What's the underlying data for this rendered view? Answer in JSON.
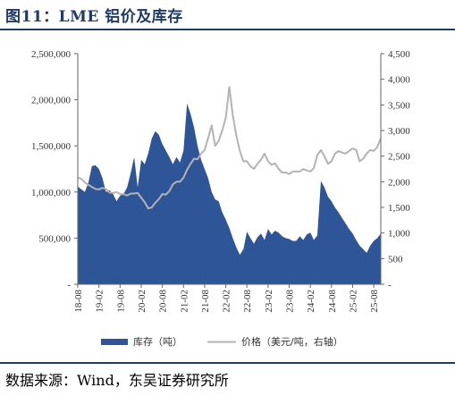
{
  "header": {
    "title": "图11：LME 铝价及库存"
  },
  "footer": {
    "source": "数据来源：Wind，东吴证券研究所"
  },
  "colors": {
    "brand": "#1f3a67",
    "inventory": "#2e5597",
    "price": "#b3b3b3"
  },
  "chart_data": {
    "type": "area",
    "title": "图11：LME 铝价及库存",
    "x_tick_labels": [
      "18-08",
      "19-02",
      "19-08",
      "20-02",
      "20-08",
      "21-02",
      "21-08",
      "22-02",
      "22-08",
      "23-02",
      "23-08",
      "24-02",
      "24-08",
      "25-02",
      "25-08"
    ],
    "left_axis": {
      "range": [
        0,
        2500000
      ],
      "tick_labels": [
        "-",
        "500,000",
        "1,000,000",
        "1,500,000",
        "2,000,000",
        "2,500,000"
      ]
    },
    "right_axis": {
      "range": [
        0,
        4500
      ],
      "tick_labels": [
        "-",
        "500",
        "1,000",
        "1,500",
        "2,000",
        "2,500",
        "3,000",
        "3,500",
        "4,000",
        "4,500"
      ]
    },
    "series": [
      {
        "name": "库存（吨）",
        "type": "area",
        "axis": "left",
        "color": "#2e5597",
        "points": [
          [
            "2018-08",
            1060000
          ],
          [
            "2018-09",
            1030000
          ],
          [
            "2018-10",
            1000000
          ],
          [
            "2018-11",
            1100000
          ],
          [
            "2018-12",
            1280000
          ],
          [
            "2019-01",
            1290000
          ],
          [
            "2019-02",
            1250000
          ],
          [
            "2019-03",
            1150000
          ],
          [
            "2019-04",
            1000000
          ],
          [
            "2019-05",
            1020000
          ],
          [
            "2019-06",
            980000
          ],
          [
            "2019-07",
            900000
          ],
          [
            "2019-08",
            960000
          ],
          [
            "2019-09",
            980000
          ],
          [
            "2019-10",
            1050000
          ],
          [
            "2019-11",
            1200000
          ],
          [
            "2019-12",
            1380000
          ],
          [
            "2020-01",
            1050000
          ],
          [
            "2020-02",
            1350000
          ],
          [
            "2020-03",
            1300000
          ],
          [
            "2020-04",
            1420000
          ],
          [
            "2020-05",
            1580000
          ],
          [
            "2020-06",
            1660000
          ],
          [
            "2020-07",
            1620000
          ],
          [
            "2020-08",
            1520000
          ],
          [
            "2020-09",
            1450000
          ],
          [
            "2020-10",
            1380000
          ],
          [
            "2020-11",
            1300000
          ],
          [
            "2020-12",
            1380000
          ],
          [
            "2021-01",
            1320000
          ],
          [
            "2021-02",
            1450000
          ],
          [
            "2021-03",
            1960000
          ],
          [
            "2021-04",
            1850000
          ],
          [
            "2021-05",
            1700000
          ],
          [
            "2021-06",
            1500000
          ],
          [
            "2021-07",
            1350000
          ],
          [
            "2021-08",
            1250000
          ],
          [
            "2021-09",
            1150000
          ],
          [
            "2021-10",
            1000000
          ],
          [
            "2021-11",
            920000
          ],
          [
            "2021-12",
            900000
          ],
          [
            "2022-01",
            780000
          ],
          [
            "2022-02",
            700000
          ],
          [
            "2022-03",
            610000
          ],
          [
            "2022-04",
            500000
          ],
          [
            "2022-05",
            400000
          ],
          [
            "2022-06",
            320000
          ],
          [
            "2022-07",
            380000
          ],
          [
            "2022-08",
            570000
          ],
          [
            "2022-09",
            500000
          ],
          [
            "2022-10",
            440000
          ],
          [
            "2022-11",
            510000
          ],
          [
            "2022-12",
            550000
          ],
          [
            "2023-01",
            480000
          ],
          [
            "2023-02",
            600000
          ],
          [
            "2023-03",
            540000
          ],
          [
            "2023-04",
            580000
          ],
          [
            "2023-05",
            560000
          ],
          [
            "2023-06",
            520000
          ],
          [
            "2023-07",
            500000
          ],
          [
            "2023-08",
            490000
          ],
          [
            "2023-09",
            470000
          ],
          [
            "2023-10",
            470000
          ],
          [
            "2023-11",
            520000
          ],
          [
            "2023-12",
            480000
          ],
          [
            "2024-01",
            540000
          ],
          [
            "2024-02",
            560000
          ],
          [
            "2024-03",
            480000
          ],
          [
            "2024-04",
            530000
          ],
          [
            "2024-05",
            1120000
          ],
          [
            "2024-06",
            1050000
          ],
          [
            "2024-07",
            950000
          ],
          [
            "2024-08",
            900000
          ],
          [
            "2024-09",
            830000
          ],
          [
            "2024-10",
            780000
          ],
          [
            "2024-11",
            720000
          ],
          [
            "2024-12",
            660000
          ],
          [
            "2025-01",
            600000
          ],
          [
            "2025-02",
            550000
          ],
          [
            "2025-03",
            480000
          ],
          [
            "2025-04",
            420000
          ],
          [
            "2025-05",
            380000
          ],
          [
            "2025-06",
            340000
          ],
          [
            "2025-07",
            420000
          ],
          [
            "2025-08",
            470000
          ],
          [
            "2025-09",
            500000
          ],
          [
            "2025-10",
            550000
          ]
        ]
      },
      {
        "name": "价格（美元/吨，右轴）",
        "type": "line",
        "axis": "right",
        "color": "#b3b3b3",
        "points": [
          [
            "2018-08",
            2080
          ],
          [
            "2018-09",
            2060
          ],
          [
            "2018-10",
            1990
          ],
          [
            "2018-11",
            1940
          ],
          [
            "2018-12",
            1900
          ],
          [
            "2019-01",
            1860
          ],
          [
            "2019-02",
            1850
          ],
          [
            "2019-03",
            1880
          ],
          [
            "2019-04",
            1860
          ],
          [
            "2019-05",
            1790
          ],
          [
            "2019-06",
            1780
          ],
          [
            "2019-07",
            1800
          ],
          [
            "2019-08",
            1760
          ],
          [
            "2019-09",
            1760
          ],
          [
            "2019-10",
            1730
          ],
          [
            "2019-11",
            1770
          ],
          [
            "2019-12",
            1770
          ],
          [
            "2020-01",
            1780
          ],
          [
            "2020-02",
            1690
          ],
          [
            "2020-03",
            1600
          ],
          [
            "2020-04",
            1480
          ],
          [
            "2020-05",
            1500
          ],
          [
            "2020-06",
            1590
          ],
          [
            "2020-07",
            1660
          ],
          [
            "2020-08",
            1760
          ],
          [
            "2020-09",
            1750
          ],
          [
            "2020-10",
            1820
          ],
          [
            "2020-11",
            1950
          ],
          [
            "2020-12",
            2000
          ],
          [
            "2021-01",
            2000
          ],
          [
            "2021-02",
            2080
          ],
          [
            "2021-03",
            2230
          ],
          [
            "2021-04",
            2350
          ],
          [
            "2021-05",
            2450
          ],
          [
            "2021-06",
            2440
          ],
          [
            "2021-07",
            2550
          ],
          [
            "2021-08",
            2620
          ],
          [
            "2021-09",
            2850
          ],
          [
            "2021-10",
            3100
          ],
          [
            "2021-11",
            2700
          ],
          [
            "2021-12",
            2800
          ],
          [
            "2022-01",
            3000
          ],
          [
            "2022-02",
            3250
          ],
          [
            "2022-03",
            3850
          ],
          [
            "2022-04",
            3300
          ],
          [
            "2022-05",
            2900
          ],
          [
            "2022-06",
            2600
          ],
          [
            "2022-07",
            2400
          ],
          [
            "2022-08",
            2400
          ],
          [
            "2022-09",
            2300
          ],
          [
            "2022-10",
            2250
          ],
          [
            "2022-11",
            2350
          ],
          [
            "2022-12",
            2430
          ],
          [
            "2023-01",
            2550
          ],
          [
            "2023-02",
            2400
          ],
          [
            "2023-03",
            2330
          ],
          [
            "2023-04",
            2360
          ],
          [
            "2023-05",
            2250
          ],
          [
            "2023-06",
            2180
          ],
          [
            "2023-07",
            2180
          ],
          [
            "2023-08",
            2150
          ],
          [
            "2023-09",
            2200
          ],
          [
            "2023-10",
            2200
          ],
          [
            "2023-11",
            2200
          ],
          [
            "2023-12",
            2250
          ],
          [
            "2024-01",
            2220
          ],
          [
            "2024-02",
            2200
          ],
          [
            "2024-03",
            2270
          ],
          [
            "2024-04",
            2520
          ],
          [
            "2024-05",
            2620
          ],
          [
            "2024-06",
            2500
          ],
          [
            "2024-07",
            2350
          ],
          [
            "2024-08",
            2400
          ],
          [
            "2024-09",
            2550
          ],
          [
            "2024-10",
            2600
          ],
          [
            "2024-11",
            2570
          ],
          [
            "2024-12",
            2550
          ],
          [
            "2025-01",
            2600
          ],
          [
            "2025-02",
            2650
          ],
          [
            "2025-03",
            2620
          ],
          [
            "2025-04",
            2400
          ],
          [
            "2025-05",
            2450
          ],
          [
            "2025-06",
            2550
          ],
          [
            "2025-07",
            2620
          ],
          [
            "2025-08",
            2600
          ],
          [
            "2025-09",
            2680
          ],
          [
            "2025-10",
            2850
          ]
        ]
      }
    ],
    "legend": {
      "position": "bottom"
    },
    "grid": false
  }
}
